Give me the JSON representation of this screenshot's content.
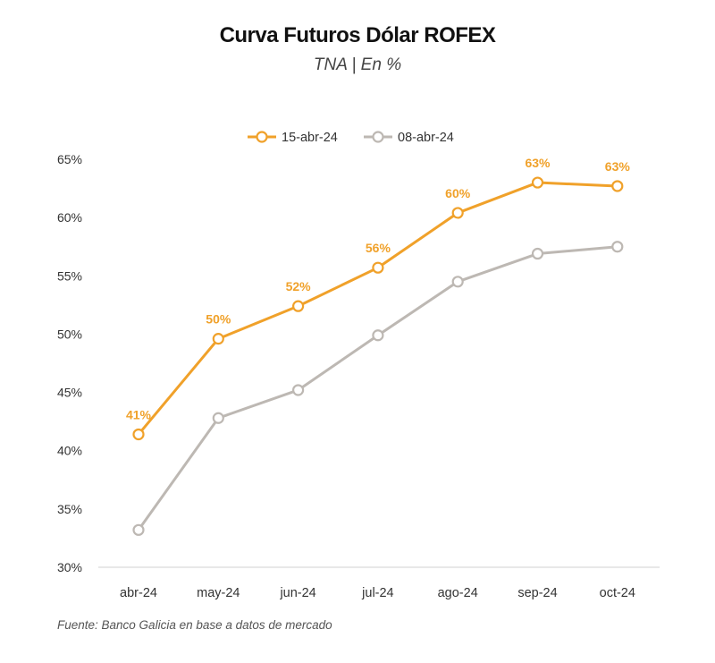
{
  "chart_data": {
    "type": "line",
    "title": "Curva Futuros Dólar ROFEX",
    "subtitle": "TNA | En %",
    "source": "Fuente: Banco Galicia en base a datos de mercado",
    "categories": [
      "abr-24",
      "may-24",
      "jun-24",
      "jul-24",
      "ago-24",
      "sep-24",
      "oct-24"
    ],
    "ylim": [
      30,
      65
    ],
    "yticks": [
      30,
      35,
      40,
      45,
      50,
      55,
      60,
      65
    ],
    "ytick_labels": [
      "30%",
      "35%",
      "40%",
      "45%",
      "50%",
      "55%",
      "60%",
      "65%"
    ],
    "legend_position": "top-center",
    "grid": false,
    "series": [
      {
        "name": "15-abr-24",
        "color": "#F0A12A",
        "values": [
          41.4,
          49.6,
          52.4,
          55.7,
          60.4,
          63.0,
          62.7
        ],
        "data_labels": [
          "41%",
          "50%",
          "52%",
          "56%",
          "60%",
          "63%",
          "63%"
        ]
      },
      {
        "name": "08-abr-24",
        "color": "#BDB8B3",
        "values": [
          33.2,
          42.8,
          45.2,
          49.9,
          54.5,
          56.9,
          57.5
        ]
      }
    ]
  }
}
